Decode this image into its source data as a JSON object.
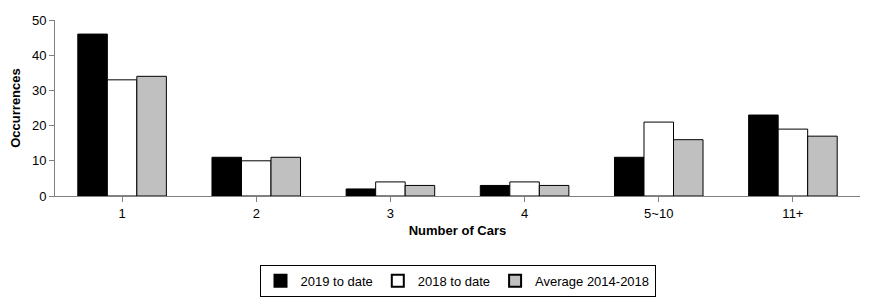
{
  "chart_data": {
    "type": "bar",
    "x_label": "Number of Cars",
    "y_label": "Occurrences",
    "categories": [
      "1",
      "2",
      "3",
      "4",
      "5~10",
      "11+"
    ],
    "series": [
      {
        "name": "2019 to date",
        "color": "#000000",
        "values": [
          46,
          11,
          2,
          3,
          11,
          23
        ]
      },
      {
        "name": "2018 to date",
        "color": "#ffffff",
        "values": [
          33,
          10,
          4,
          4,
          21,
          19
        ]
      },
      {
        "name": "Average 2014-2018",
        "color": "#c0c0c0",
        "values": [
          34,
          11,
          3,
          3,
          16,
          17
        ]
      }
    ],
    "ylim": [
      0,
      50
    ],
    "yticks": [
      0,
      10,
      20,
      30,
      40,
      50
    ],
    "grid": false,
    "legend": "bottom"
  }
}
